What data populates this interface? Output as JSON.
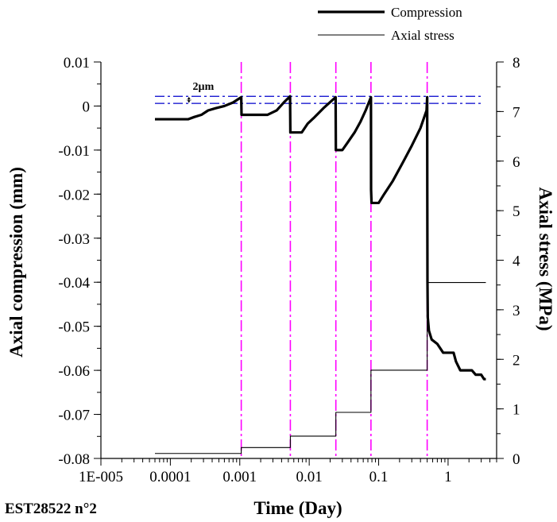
{
  "chart_data": {
    "type": "line",
    "title": "",
    "sample_id": "EST28522 n°2",
    "xlabel": "Time (Day)",
    "ylabel_left": "Axial compression (mm)",
    "ylabel_right": "Axial stress (MPa)",
    "x_scale": "log",
    "xlim": [
      1e-05,
      5
    ],
    "ylim_left": [
      -0.08,
      0.01
    ],
    "ylim_right": [
      0,
      8
    ],
    "grid": false,
    "legend_position": "top-right",
    "x_ticks": [
      {
        "value": 1e-05,
        "label": "1E-005"
      },
      {
        "value": 0.0001,
        "label": "0.0001"
      },
      {
        "value": 0.001,
        "label": "0.001"
      },
      {
        "value": 0.01,
        "label": "0.01"
      },
      {
        "value": 0.1,
        "label": "0.1"
      },
      {
        "value": 1,
        "label": "1"
      }
    ],
    "y_left_ticks": [
      {
        "value": 0.01,
        "label": "0.01"
      },
      {
        "value": 0,
        "label": "0"
      },
      {
        "value": -0.01,
        "label": "-0.01"
      },
      {
        "value": -0.02,
        "label": "-0.02"
      },
      {
        "value": -0.03,
        "label": "-0.03"
      },
      {
        "value": -0.04,
        "label": "-0.04"
      },
      {
        "value": -0.05,
        "label": "-0.05"
      },
      {
        "value": -0.06,
        "label": "-0.06"
      },
      {
        "value": -0.07,
        "label": "-0.07"
      },
      {
        "value": -0.08,
        "label": "-0.08"
      }
    ],
    "y_right_ticks": [
      {
        "value": 8,
        "label": "8"
      },
      {
        "value": 7,
        "label": "7"
      },
      {
        "value": 6,
        "label": "6"
      },
      {
        "value": 5,
        "label": "5"
      },
      {
        "value": 4,
        "label": "4"
      },
      {
        "value": 3,
        "label": "3"
      },
      {
        "value": 2,
        "label": "2"
      },
      {
        "value": 1,
        "label": "1"
      },
      {
        "value": 0,
        "label": "0"
      }
    ],
    "series": [
      {
        "name": "Compression",
        "axis": "left",
        "style": "thick",
        "color": "#000000",
        "points": [
          [
            6e-05,
            -0.003
          ],
          [
            0.00018,
            -0.003
          ],
          [
            0.00022,
            -0.0025
          ],
          [
            0.00028,
            -0.002
          ],
          [
            0.00035,
            -0.001
          ],
          [
            0.00045,
            -0.0005
          ],
          [
            0.0006,
            0.0
          ],
          [
            0.0008,
            0.0008
          ],
          [
            0.00105,
            0.002
          ],
          [
            0.00106,
            -0.002
          ],
          [
            0.0025,
            -0.002
          ],
          [
            0.0034,
            -0.001
          ],
          [
            0.0043,
            0.0008
          ],
          [
            0.0053,
            0.0022
          ],
          [
            0.00535,
            -0.006
          ],
          [
            0.0078,
            -0.006
          ],
          [
            0.0095,
            -0.004
          ],
          [
            0.012,
            -0.0025
          ],
          [
            0.016,
            -0.0005
          ],
          [
            0.024,
            0.002
          ],
          [
            0.0242,
            -0.01
          ],
          [
            0.03,
            -0.01
          ],
          [
            0.035,
            -0.0085
          ],
          [
            0.045,
            -0.006
          ],
          [
            0.055,
            -0.0035
          ],
          [
            0.065,
            -0.001
          ],
          [
            0.0775,
            0.002
          ],
          [
            0.0778,
            -0.019
          ],
          [
            0.079,
            -0.022
          ],
          [
            0.1,
            -0.022
          ],
          [
            0.12,
            -0.02
          ],
          [
            0.16,
            -0.017
          ],
          [
            0.22,
            -0.013
          ],
          [
            0.3,
            -0.009
          ],
          [
            0.4,
            -0.005
          ],
          [
            0.49,
            -0.001
          ],
          [
            0.5,
            0.002
          ],
          [
            0.502,
            -0.02
          ],
          [
            0.505,
            -0.04
          ],
          [
            0.51,
            -0.048
          ],
          [
            0.53,
            -0.051
          ],
          [
            0.58,
            -0.053
          ],
          [
            0.7,
            -0.054
          ],
          [
            0.85,
            -0.056
          ],
          [
            1.2,
            -0.056
          ],
          [
            1.3,
            -0.058
          ],
          [
            1.5,
            -0.06
          ],
          [
            1.8,
            -0.06
          ],
          [
            2.2,
            -0.06
          ],
          [
            2.5,
            -0.061
          ],
          [
            3.0,
            -0.061
          ],
          [
            3.3,
            -0.062
          ],
          [
            3.5,
            -0.062
          ]
        ]
      },
      {
        "name": "Axial stress",
        "axis": "right",
        "style": "thin",
        "color": "#000000",
        "points": [
          [
            6e-05,
            0.1
          ],
          [
            0.00105,
            0.1
          ],
          [
            0.00105,
            0.22
          ],
          [
            0.00535,
            0.22
          ],
          [
            0.00535,
            0.45
          ],
          [
            0.0242,
            0.45
          ],
          [
            0.0242,
            0.93
          ],
          [
            0.0775,
            0.93
          ],
          [
            0.0775,
            1.78
          ],
          [
            0.5,
            1.78
          ],
          [
            0.5,
            3.55
          ],
          [
            3.5,
            3.55
          ]
        ]
      }
    ],
    "reference_lines": {
      "vertical_x": [
        0.00105,
        0.00535,
        0.0242,
        0.0775,
        0.5
      ],
      "vertical_color": "#ff00ff",
      "horizontal_y_left": [
        0.0022,
        0.0006
      ],
      "horizontal_color": "#0000cc",
      "horizontal_x_range": [
        6e-05,
        3.0
      ]
    },
    "annotations": [
      {
        "text": "2µm",
        "x": 0.00017,
        "y_left": 0.0014
      }
    ]
  }
}
